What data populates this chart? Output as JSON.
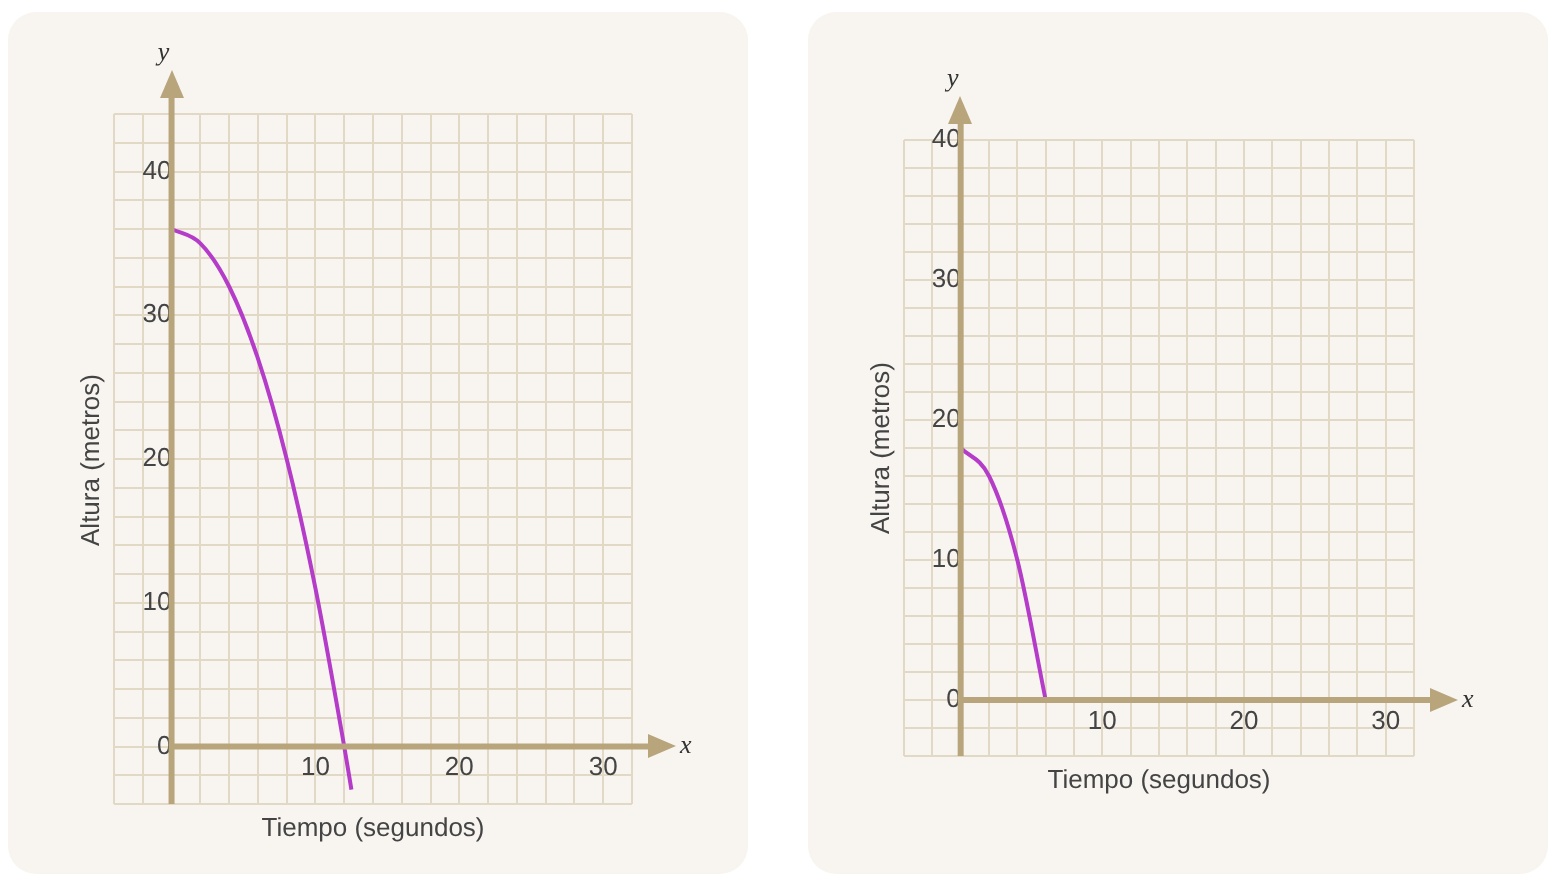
{
  "chart_data": [
    {
      "type": "line",
      "xlabel": "Tiempo (segundos)",
      "ylabel": "Altura (metros)",
      "annotations": [
        "x",
        "y"
      ],
      "x": [
        0,
        2,
        4,
        6,
        8,
        10,
        12,
        12.5
      ],
      "series": [
        {
          "color": "#b43cc8",
          "values": [
            36,
            35,
            32,
            27,
            20,
            11,
            0,
            -3
          ]
        }
      ],
      "xlim": [
        -4,
        32
      ],
      "ylim": [
        -4,
        44
      ],
      "xticks": [
        {
          "value": -4,
          "label": null
        },
        {
          "value": -2,
          "label": null
        },
        {
          "value": 0,
          "label": null
        },
        {
          "value": 2,
          "label": null
        },
        {
          "value": 4,
          "label": null
        },
        {
          "value": 6,
          "label": null
        },
        {
          "value": 8,
          "label": null
        },
        10,
        {
          "value": 12,
          "label": null
        },
        {
          "value": 14,
          "label": null
        },
        {
          "value": 16,
          "label": null
        },
        {
          "value": 18,
          "label": null
        },
        20,
        {
          "value": 22,
          "label": null
        },
        {
          "value": 24,
          "label": null
        },
        {
          "value": 26,
          "label": null
        },
        {
          "value": 28,
          "label": null
        },
        30,
        {
          "value": 32,
          "label": null
        }
      ],
      "yticks": [
        {
          "value": -4,
          "label": null
        },
        {
          "value": -2,
          "label": null
        },
        0,
        {
          "value": 2,
          "label": null
        },
        {
          "value": 4,
          "label": null
        },
        {
          "value": 6,
          "label": null
        },
        {
          "value": 8,
          "label": null
        },
        10,
        {
          "value": 12,
          "label": null
        },
        {
          "value": 14,
          "label": null
        },
        {
          "value": 16,
          "label": null
        },
        {
          "value": 18,
          "label": null
        },
        20,
        {
          "value": 22,
          "label": null
        },
        {
          "value": 24,
          "label": null
        },
        {
          "value": 26,
          "label": null
        },
        {
          "value": 28,
          "label": null
        },
        30,
        {
          "value": 32,
          "label": null
        },
        {
          "value": 34,
          "label": null
        },
        {
          "value": 36,
          "label": null
        },
        {
          "value": 38,
          "label": null
        },
        40,
        {
          "value": 42,
          "label": null
        },
        {
          "value": 44,
          "label": null
        }
      ],
      "grid": true
    },
    {
      "type": "line",
      "xlabel": "Tiempo (segundos)",
      "ylabel": "Altura (metros)",
      "annotations": [
        "x",
        "y"
      ],
      "x": [
        0,
        2,
        4,
        6
      ],
      "series": [
        {
          "color": "#b43cc8",
          "values": [
            18,
            16,
            10,
            0
          ]
        }
      ],
      "xlim": [
        -4,
        32
      ],
      "ylim": [
        -4,
        40
      ],
      "xticks": [
        {
          "value": -4,
          "label": null
        },
        {
          "value": -2,
          "label": null
        },
        {
          "value": 0,
          "label": null
        },
        {
          "value": 2,
          "label": null
        },
        {
          "value": 4,
          "label": null
        },
        {
          "value": 6,
          "label": null
        },
        {
          "value": 8,
          "label": null
        },
        10,
        {
          "value": 12,
          "label": null
        },
        {
          "value": 14,
          "label": null
        },
        {
          "value": 16,
          "label": null
        },
        {
          "value": 18,
          "label": null
        },
        20,
        {
          "value": 22,
          "label": null
        },
        {
          "value": 24,
          "label": null
        },
        {
          "value": 26,
          "label": null
        },
        {
          "value": 28,
          "label": null
        },
        30,
        {
          "value": 32,
          "label": null
        }
      ],
      "yticks": [
        {
          "value": -4,
          "label": null
        },
        {
          "value": -2,
          "label": null
        },
        0,
        {
          "value": 2,
          "label": null
        },
        {
          "value": 4,
          "label": null
        },
        {
          "value": 6,
          "label": null
        },
        {
          "value": 8,
          "label": null
        },
        10,
        {
          "value": 12,
          "label": null
        },
        {
          "value": 14,
          "label": null
        },
        {
          "value": 16,
          "label": null
        },
        {
          "value": 18,
          "label": null
        },
        20,
        {
          "value": 22,
          "label": null
        },
        {
          "value": 24,
          "label": null
        },
        {
          "value": 26,
          "label": null
        },
        {
          "value": 28,
          "label": null
        },
        30,
        {
          "value": 32,
          "label": null
        },
        {
          "value": 34,
          "label": null
        },
        {
          "value": 36,
          "label": null
        },
        {
          "value": 38,
          "label": null
        },
        40
      ],
      "grid": true
    }
  ]
}
